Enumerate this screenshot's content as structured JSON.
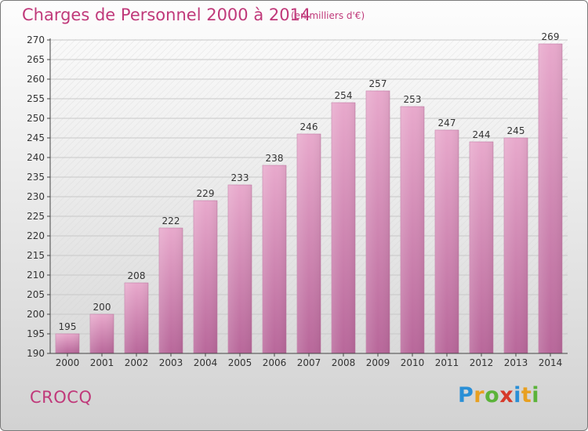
{
  "header": {
    "title": "Charges de Personnel 2000 à 2014",
    "subtitle": "(en milliers d'€)"
  },
  "footer": {
    "commune": "CROCQ",
    "logo_letters": [
      "P",
      "r",
      "o",
      "x",
      "i",
      "t",
      "i"
    ],
    "logo_colors": [
      "#2a8fd6",
      "#e8a020",
      "#5bb33a",
      "#d63a2a",
      "#2a8fd6",
      "#e8a020",
      "#5bb33a"
    ]
  },
  "chart_data": {
    "type": "bar",
    "categories": [
      "2000",
      "2001",
      "2002",
      "2003",
      "2004",
      "2005",
      "2006",
      "2007",
      "2008",
      "2009",
      "2010",
      "2011",
      "2012",
      "2013",
      "2014"
    ],
    "values": [
      195,
      200,
      208,
      222,
      229,
      233,
      238,
      246,
      254,
      257,
      253,
      247,
      244,
      245,
      269
    ],
    "ylim": [
      190,
      270
    ],
    "yticks": [
      190,
      195,
      200,
      205,
      210,
      215,
      220,
      225,
      230,
      235,
      240,
      245,
      250,
      255,
      260,
      265,
      270
    ],
    "grid": true,
    "bar_color": "#d98fb6"
  }
}
